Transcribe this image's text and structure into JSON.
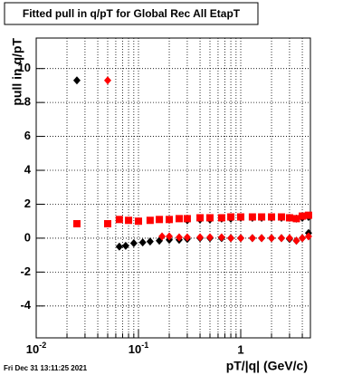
{
  "chart_data": {
    "type": "scatter",
    "title": "Fitted pull in q/pT for Global Rec All EtapT",
    "x_label": "pT/|q| (GeV/c)",
    "y_label": "pull in q/pT",
    "timestamp": "Fri Dec 31 13:11:25 2021",
    "xlog": true,
    "grid": true,
    "xlim": [
      0.01,
      4.8
    ],
    "ylim": [
      -5.88,
      11.8
    ],
    "xticks": [
      {
        "value": 0.01,
        "label": "10",
        "power": "-2"
      },
      {
        "value": 0.1,
        "label": "10",
        "power": "-1"
      },
      1
    ],
    "xminor": [
      0.02,
      0.03,
      0.04,
      0.05,
      0.06,
      0.07,
      0.08,
      0.09,
      0.2,
      0.3,
      0.4,
      0.5,
      0.6,
      0.7,
      0.8,
      0.9,
      2,
      3,
      4
    ],
    "yticks": [
      -4,
      -2,
      0,
      2,
      4,
      6,
      8,
      10
    ],
    "series": [
      {
        "color": "#000000",
        "marker": "diamond",
        "x": [
          0.3,
          0.4,
          0.5,
          0.65,
          0.8,
          1.0,
          1.3,
          1.6,
          2.0,
          2.5,
          3.0,
          3.5,
          4.0,
          4.6
        ],
        "values": [
          1.05,
          1.1,
          1.1,
          1.15,
          1.15,
          1.2,
          1.2,
          1.2,
          1.2,
          1.2,
          1.2,
          1.15,
          1.2,
          1.25
        ]
      },
      {
        "color": "#ff0000",
        "marker": "square",
        "x": [
          0.025,
          0.05,
          0.065,
          0.08,
          0.1,
          0.13,
          0.16,
          0.2,
          0.25,
          0.3,
          0.4,
          0.5,
          0.65,
          0.8,
          1.0,
          1.3,
          1.6,
          2.0,
          2.5,
          3.0,
          3.5,
          4.0,
          4.6
        ],
        "values": [
          0.85,
          0.85,
          1.1,
          1.05,
          1.0,
          1.05,
          1.1,
          1.1,
          1.15,
          1.15,
          1.2,
          1.2,
          1.2,
          1.25,
          1.25,
          1.25,
          1.25,
          1.25,
          1.25,
          1.2,
          1.15,
          1.3,
          1.35
        ]
      },
      {
        "color": "#000000",
        "marker": "diamond",
        "x": [
          0.025,
          0.065,
          0.075,
          0.09,
          0.11,
          0.13,
          0.16,
          0.2,
          0.25,
          0.3,
          0.4,
          0.5,
          0.65,
          0.8,
          1.0,
          1.3,
          1.6,
          2.0,
          2.5,
          3.0,
          3.5,
          4.0,
          4.6
        ],
        "values": [
          9.3,
          -0.5,
          -0.45,
          -0.3,
          -0.25,
          -0.2,
          -0.15,
          -0.1,
          -0.1,
          -0.05,
          0,
          0,
          0,
          0,
          0,
          0,
          0,
          0,
          0,
          -0.05,
          -0.15,
          0,
          0.3
        ]
      },
      {
        "color": "#ff0000",
        "marker": "diamond",
        "x": [
          0.05,
          0.17,
          0.2,
          0.25,
          0.3,
          0.4,
          0.5,
          0.65,
          0.8,
          1.0,
          1.3,
          1.6,
          2.0,
          2.5,
          3.0,
          3.5,
          4.0,
          4.6
        ],
        "values": [
          9.3,
          0.1,
          0.1,
          0.05,
          0.05,
          0.05,
          0.05,
          0.05,
          0,
          0,
          0,
          0,
          0,
          0,
          0,
          -0.15,
          0,
          0.1
        ]
      }
    ]
  }
}
